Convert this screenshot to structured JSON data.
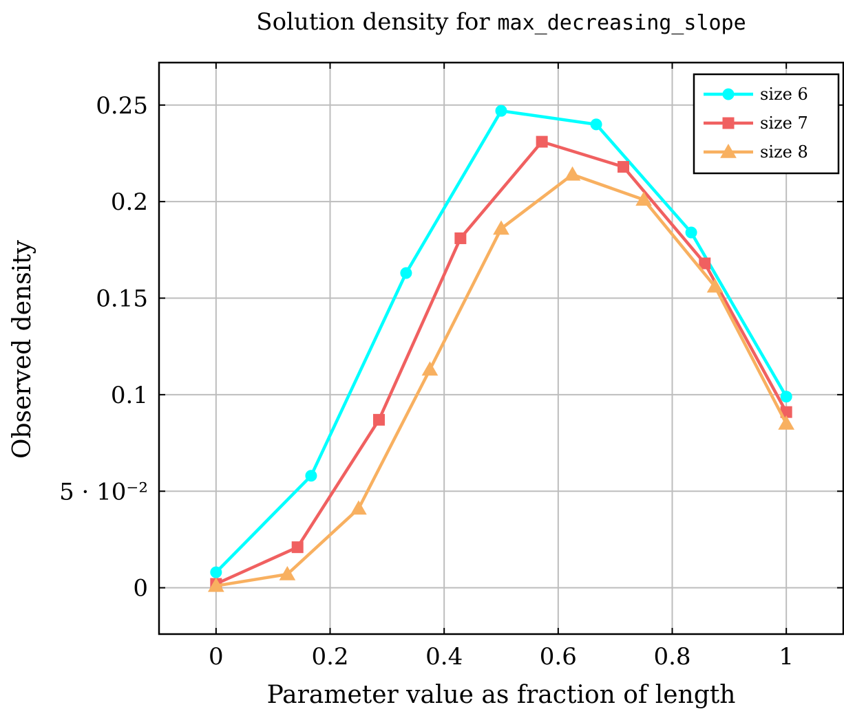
{
  "chart_data": {
    "type": "line",
    "title_prefix": "Solution density for ",
    "title_code": "max_decreasing_slope",
    "xlabel": "Parameter value as fraction of length",
    "ylabel": "Observed density",
    "xlim": [
      -0.1,
      1.1
    ],
    "ylim": [
      -0.024,
      0.272
    ],
    "grid": true,
    "legend_position": "top-right",
    "x_ticks": [
      0,
      0.2,
      0.4,
      0.6,
      0.8,
      1
    ],
    "x_tick_labels": [
      "0",
      "0.2",
      "0.4",
      "0.6",
      "0.8",
      "1"
    ],
    "y_ticks": [
      0,
      0.05,
      0.1,
      0.15,
      0.2,
      0.25
    ],
    "y_tick_labels": [
      "0",
      "5 · 10⁻²",
      "0.1",
      "0.15",
      "0.2",
      "0.25"
    ],
    "series": [
      {
        "name": "size 6",
        "color": "#00ffff",
        "marker": "circle",
        "x": [
          0,
          0.1667,
          0.3333,
          0.5,
          0.6667,
          0.8333,
          1
        ],
        "y": [
          0.008,
          0.058,
          0.163,
          0.247,
          0.24,
          0.184,
          0.099
        ]
      },
      {
        "name": "size 7",
        "color": "#f06060",
        "marker": "square",
        "x": [
          0,
          0.1429,
          0.2857,
          0.4286,
          0.5714,
          0.7143,
          0.8571,
          1
        ],
        "y": [
          0.002,
          0.021,
          0.087,
          0.181,
          0.231,
          0.218,
          0.168,
          0.091
        ]
      },
      {
        "name": "size 8",
        "color": "#f8b060",
        "marker": "triangle",
        "x": [
          0,
          0.125,
          0.25,
          0.375,
          0.5,
          0.625,
          0.75,
          0.875,
          1
        ],
        "y": [
          0.001,
          0.007,
          0.041,
          0.113,
          0.186,
          0.214,
          0.201,
          0.156,
          0.085
        ]
      }
    ]
  }
}
